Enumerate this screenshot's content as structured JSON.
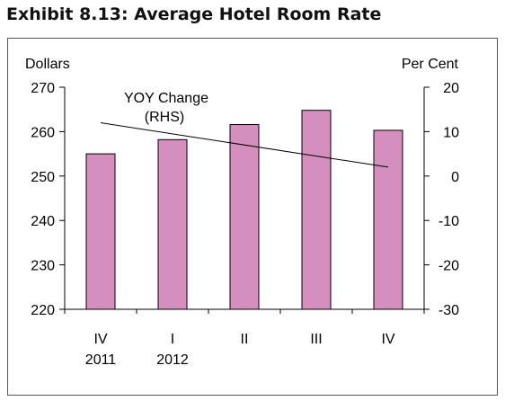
{
  "title": "Exhibit 8.13: Average Hotel Room Rate",
  "chart_data": {
    "type": "bar",
    "categories": [
      [
        "IV",
        "2011"
      ],
      [
        "I",
        "2012"
      ],
      [
        "II",
        ""
      ],
      [
        "III",
        ""
      ],
      [
        "IV",
        ""
      ]
    ],
    "left_axis": {
      "label": "Dollars",
      "ylim": [
        220,
        270
      ],
      "ticks": [
        220,
        230,
        240,
        250,
        260,
        270
      ]
    },
    "right_axis": {
      "label": "Per Cent",
      "ylim": [
        -30,
        20
      ],
      "ticks": [
        -30,
        -20,
        -10,
        0,
        10,
        20
      ]
    },
    "bar_values": [
      255,
      258.2,
      261.6,
      264.8,
      260.3
    ],
    "bar_color": "#d48fbf",
    "line": {
      "start": 12,
      "end": 2,
      "axis": "right",
      "color": "#000000"
    },
    "annotation": [
      "YOY  Change",
      "(RHS)"
    ],
    "grid": false,
    "legend": "none"
  }
}
